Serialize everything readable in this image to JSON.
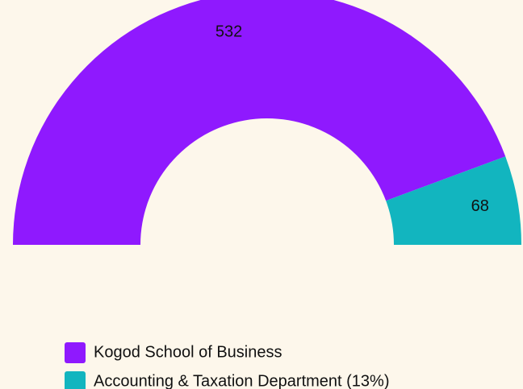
{
  "chart_data": {
    "type": "half-donut",
    "categories": [
      "Kogod School of Business",
      "Accounting & Taxation Department (13%)"
    ],
    "values": [
      532,
      68
    ],
    "colors": [
      "#8f19fe",
      "#12b5bf"
    ]
  }
}
